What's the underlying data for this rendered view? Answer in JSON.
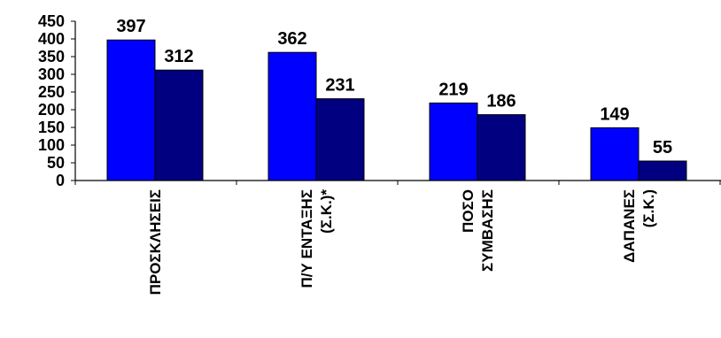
{
  "chart_data": {
    "type": "bar",
    "categories": [
      [
        "ΠΡΟΣΚΛΗΣΕΙΣ"
      ],
      [
        "Π/Υ ΕΝΤΑΞΗΣ",
        "(Σ.Κ.)*"
      ],
      [
        "ΠΟΣΟ",
        "ΣΥΜΒΑΣΗΣ"
      ],
      [
        "ΔΑΠΑΝΕΣ",
        "(Σ.Κ.)"
      ]
    ],
    "series": [
      {
        "values": [
          397,
          362,
          219,
          149
        ],
        "color": "#0000FF"
      },
      {
        "values": [
          312,
          231,
          186,
          55
        ],
        "color": "#000080"
      }
    ],
    "ylim": [
      0,
      450
    ],
    "yticks": [
      0,
      50,
      100,
      150,
      200,
      250,
      300,
      350,
      400,
      450
    ],
    "grid": false,
    "legend": "none"
  }
}
